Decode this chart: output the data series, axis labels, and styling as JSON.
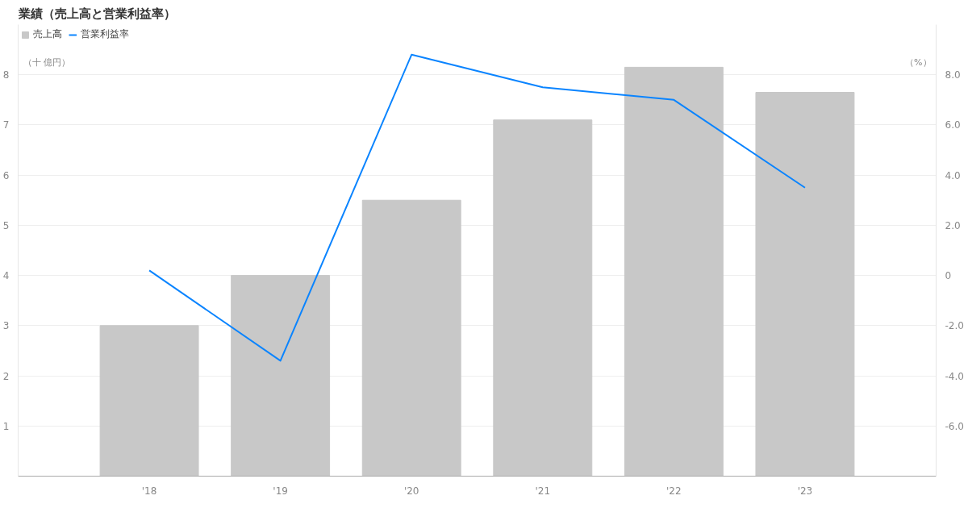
{
  "chart_data": {
    "type": "bar",
    "title": "業績（売上高と営業利益率）",
    "categories": [
      "'18",
      "'19",
      "'20",
      "'21",
      "'22",
      "'23"
    ],
    "series": [
      {
        "name": "売上高",
        "color": "#c8c8c8",
        "values": [
          3.0,
          4.0,
          5.5,
          7.1,
          8.15,
          7.65
        ]
      },
      {
        "name": "営業利益率",
        "type": "line",
        "axis": "y2",
        "color": "#0a84ff",
        "values": [
          0.2,
          -3.4,
          8.8,
          7.5,
          7.0,
          3.5
        ]
      }
    ],
    "ylabel": "（十 億円）",
    "y2label": "（%）",
    "ylim": [
      0,
      9
    ],
    "yticks": [
      1,
      2,
      3,
      4,
      5,
      6,
      7,
      8
    ],
    "y2lim": [
      -8,
      10
    ],
    "y2ticks": [
      {
        "value": -6,
        "label": "-6.0"
      },
      {
        "value": -4,
        "label": "-4.0"
      },
      {
        "value": -2,
        "label": "-2.0"
      },
      0,
      {
        "value": 2,
        "label": "2.0"
      },
      {
        "value": 4,
        "label": "4.0"
      },
      {
        "value": 6,
        "label": "6.0"
      },
      {
        "value": 8,
        "label": "8.0"
      }
    ],
    "grid": "y",
    "legend": "top left",
    "marker": "none",
    "line_style": "solid"
  }
}
